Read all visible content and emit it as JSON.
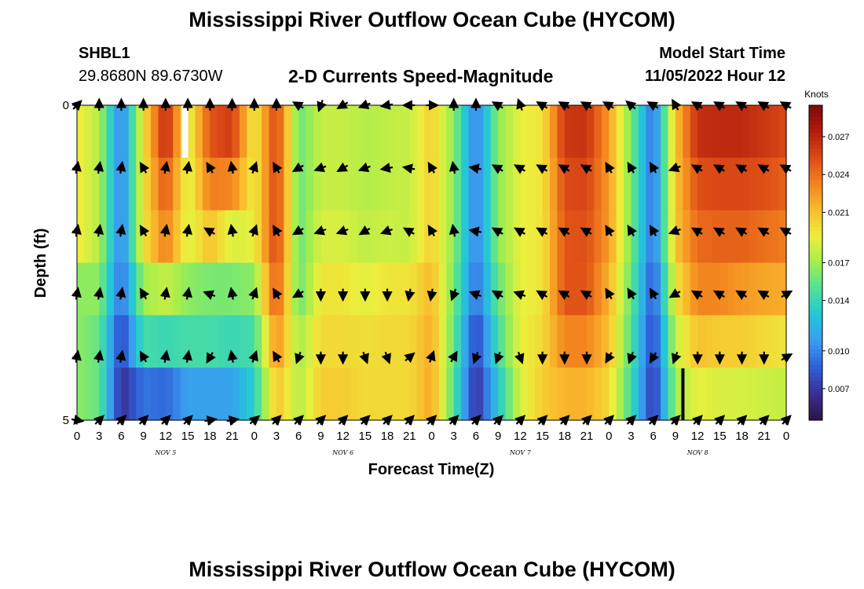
{
  "header": {
    "title": "Mississippi River Outflow Ocean Cube (HYCOM)",
    "station_id": "SHBL1",
    "station_coords": "29.8680N  89.6730W",
    "plot_title": "2-D Currents Speed-Magnitude",
    "model_start_label": "Model Start Time",
    "model_start_value": "11/05/2022 Hour 12"
  },
  "footer": {
    "title": "Mississippi River Outflow Ocean Cube (HYCOM)"
  },
  "chart_data": {
    "type": "heatmap",
    "xlabel": "Forecast Time(Z)",
    "ylabel": "Depth (ft)",
    "x_tick_labels": [
      "0",
      "3",
      "6",
      "9",
      "12",
      "15",
      "18",
      "21",
      "0",
      "3",
      "6",
      "9",
      "12",
      "15",
      "18",
      "21",
      "0",
      "3",
      "6",
      "9",
      "12",
      "15",
      "18",
      "21",
      "0",
      "3",
      "6",
      "9",
      "12",
      "15",
      "18",
      "21",
      "0"
    ],
    "day_labels": [
      {
        "text": "NOV 5",
        "hour": 12
      },
      {
        "text": "NOV 6",
        "hour": 36
      },
      {
        "text": "NOV 7",
        "hour": 60
      },
      {
        "text": "NOV 8",
        "hour": 84
      }
    ],
    "xlim_hours": [
      0,
      96
    ],
    "y_tick_labels": [
      "0",
      "5"
    ],
    "ylim_ft": [
      0,
      5
    ],
    "colorbar": {
      "unit": "Knots",
      "ticks": [
        "0.027",
        "0.024",
        "0.021",
        "0.017",
        "0.014",
        "0.010",
        "0.007"
      ],
      "tick_values": [
        0.027,
        0.024,
        0.021,
        0.017,
        0.014,
        0.01,
        0.007
      ],
      "range": [
        0.0045,
        0.0295
      ]
    },
    "colormap": [
      "#2b1447",
      "#3c2e93",
      "#2f5ed6",
      "#3a9cef",
      "#22c7d8",
      "#4fe09a",
      "#a2ee4e",
      "#ecef3c",
      "#f9bd2e",
      "#f3841f",
      "#dc4b16",
      "#b01c0e",
      "#7a0b08"
    ],
    "hours": [
      0,
      3,
      6,
      9,
      12,
      15,
      18,
      21,
      24,
      27,
      30,
      33,
      36,
      39,
      42,
      45,
      48,
      51,
      54,
      57,
      60,
      63,
      66,
      69,
      72,
      75,
      78,
      81,
      84,
      87,
      90,
      93,
      96
    ],
    "depth_rows_ft": [
      0,
      1,
      2,
      3,
      4,
      5
    ],
    "speed": [
      [
        0.0195,
        0.0175,
        0.0095,
        0.0195,
        0.027,
        0.0185,
        0.025,
        0.026,
        0.019,
        0.0258,
        0.0155,
        0.018,
        0.018,
        0.0175,
        0.0178,
        0.018,
        0.0205,
        0.0165,
        0.0095,
        0.0165,
        0.019,
        0.0195,
        0.0262,
        0.0264,
        0.0224,
        0.016,
        0.009,
        0.0208,
        0.0266,
        0.0268,
        0.0268,
        0.0262,
        0.0255
      ],
      [
        0.0195,
        0.0175,
        0.0095,
        0.0195,
        0.025,
        0.0185,
        0.0235,
        0.0232,
        0.019,
        0.0258,
        0.0155,
        0.018,
        0.018,
        0.0175,
        0.0178,
        0.018,
        0.0205,
        0.0165,
        0.0095,
        0.0165,
        0.019,
        0.0195,
        0.0254,
        0.0256,
        0.0224,
        0.016,
        0.009,
        0.0208,
        0.0252,
        0.0255,
        0.0255,
        0.0252,
        0.0245
      ],
      [
        0.0195,
        0.0175,
        0.0095,
        0.0195,
        0.0235,
        0.0185,
        0.021,
        0.0185,
        0.019,
        0.0258,
        0.0155,
        0.0185,
        0.0185,
        0.0178,
        0.0182,
        0.018,
        0.0205,
        0.0165,
        0.0095,
        0.0165,
        0.019,
        0.0195,
        0.025,
        0.0252,
        0.0224,
        0.016,
        0.009,
        0.0208,
        0.0242,
        0.0245,
        0.0245,
        0.024,
        0.0235
      ],
      [
        0.0165,
        0.0165,
        0.009,
        0.017,
        0.018,
        0.0165,
        0.016,
        0.016,
        0.0165,
        0.025,
        0.0155,
        0.0195,
        0.0195,
        0.0188,
        0.0195,
        0.0195,
        0.0213,
        0.016,
        0.009,
        0.0155,
        0.019,
        0.0195,
        0.025,
        0.025,
        0.0215,
        0.0155,
        0.0082,
        0.0195,
        0.0232,
        0.0232,
        0.0225,
        0.022,
        0.0218
      ],
      [
        0.0165,
        0.0155,
        0.0075,
        0.0145,
        0.014,
        0.0145,
        0.0145,
        0.014,
        0.0145,
        0.023,
        0.017,
        0.02,
        0.02,
        0.0198,
        0.02,
        0.02,
        0.0218,
        0.0155,
        0.0075,
        0.0145,
        0.019,
        0.02,
        0.0232,
        0.0232,
        0.021,
        0.015,
        0.0075,
        0.018,
        0.021,
        0.0205,
        0.0205,
        0.02,
        0.0195
      ],
      [
        0.0165,
        0.0155,
        0.0065,
        0.0095,
        0.009,
        0.011,
        0.011,
        0.011,
        0.0135,
        0.021,
        0.0175,
        0.0205,
        0.0205,
        0.02,
        0.02,
        0.02,
        0.022,
        0.015,
        0.0065,
        0.013,
        0.0185,
        0.0205,
        0.0215,
        0.0215,
        0.02,
        0.0145,
        0.0068,
        0.017,
        0.019,
        0.0185,
        0.0185,
        0.0182,
        0.018
      ]
    ],
    "vectors_note": "Direction (degrees clockwise from north) at each sampled hour and depth row.",
    "vector_hours": [
      0,
      3,
      6,
      9,
      12,
      15,
      18,
      21,
      24,
      27,
      30,
      33,
      36,
      39,
      42,
      45,
      48,
      51,
      54,
      57,
      60,
      63,
      66,
      69,
      72,
      75,
      78,
      81,
      84,
      87,
      90,
      93,
      96
    ],
    "vector_dirs": [
      [
        45,
        0,
        0,
        0,
        0,
        0,
        0,
        0,
        0,
        0,
        300,
        200,
        240,
        250,
        260,
        270,
        90,
        0,
        0,
        300,
        340,
        300,
        300,
        300,
        300,
        310,
        300,
        330,
        300,
        300,
        300,
        300,
        300
      ],
      [
        10,
        10,
        10,
        330,
        10,
        10,
        330,
        350,
        20,
        330,
        240,
        250,
        240,
        250,
        260,
        280,
        330,
        350,
        280,
        300,
        300,
        300,
        300,
        300,
        330,
        330,
        330,
        250,
        300,
        300,
        300,
        300,
        300
      ],
      [
        10,
        10,
        10,
        330,
        10,
        10,
        300,
        350,
        20,
        330,
        240,
        250,
        250,
        240,
        250,
        300,
        330,
        350,
        280,
        300,
        300,
        300,
        300,
        300,
        330,
        330,
        330,
        250,
        300,
        300,
        300,
        300,
        300
      ],
      [
        10,
        10,
        10,
        330,
        10,
        10,
        290,
        350,
        20,
        330,
        240,
        180,
        180,
        180,
        180,
        190,
        190,
        200,
        290,
        300,
        290,
        300,
        300,
        300,
        330,
        330,
        330,
        240,
        300,
        300,
        300,
        300,
        60
      ],
      [
        10,
        10,
        10,
        330,
        10,
        10,
        210,
        350,
        20,
        330,
        200,
        180,
        180,
        160,
        160,
        50,
        20,
        30,
        200,
        200,
        160,
        180,
        180,
        180,
        210,
        200,
        210,
        200,
        180,
        180,
        180,
        180,
        60
      ],
      [
        100,
        45,
        45,
        45,
        45,
        45,
        80,
        80,
        50,
        45,
        45,
        45,
        45,
        45,
        45,
        45,
        45,
        45,
        45,
        45,
        45,
        45,
        45,
        45,
        45,
        45,
        45,
        45,
        45,
        45,
        45,
        45,
        45
      ]
    ]
  }
}
